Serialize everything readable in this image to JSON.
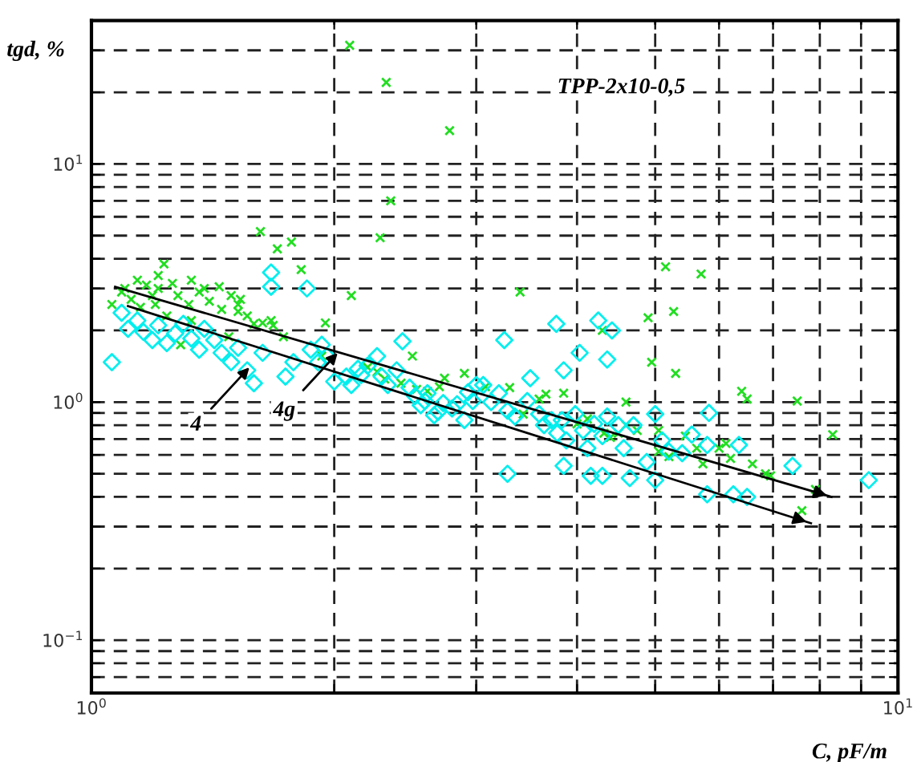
{
  "chart_data": {
    "type": "scatter",
    "xlabel": "C, pF/m",
    "ylabel": "tgd, %",
    "log": "xy",
    "grid": true,
    "xlim": [
      1,
      10
    ],
    "ylim": [
      0.06,
      40
    ],
    "xticks": [
      {
        "value": 1,
        "label": "10$^{0}$"
      },
      {
        "value": 2,
        "label": null
      },
      {
        "value": 3,
        "label": null
      },
      {
        "value": 4,
        "label": null
      },
      {
        "value": 5,
        "label": null
      },
      {
        "value": 6,
        "label": null
      },
      {
        "value": 7,
        "label": null
      },
      {
        "value": 8,
        "label": null
      },
      {
        "value": 9,
        "label": null
      },
      {
        "value": 10,
        "label": "10$^{1}$"
      }
    ],
    "yticks": [
      {
        "value": 0.07,
        "label": null
      },
      {
        "value": 0.08,
        "label": null
      },
      {
        "value": 0.09,
        "label": null
      },
      {
        "value": 0.1,
        "label": "10$^{−1}$"
      },
      {
        "value": 0.2,
        "label": null
      },
      {
        "value": 0.3,
        "label": null
      },
      {
        "value": 0.4,
        "label": null
      },
      {
        "value": 0.5,
        "label": null
      },
      {
        "value": 0.6,
        "label": null
      },
      {
        "value": 0.7,
        "label": null
      },
      {
        "value": 0.8,
        "label": null
      },
      {
        "value": 0.9,
        "label": null
      },
      {
        "value": 1,
        "label": "10$^{0}$"
      },
      {
        "value": 2,
        "label": null
      },
      {
        "value": 3,
        "label": null
      },
      {
        "value": 4,
        "label": null
      },
      {
        "value": 5,
        "label": null
      },
      {
        "value": 6,
        "label": null
      },
      {
        "value": 7,
        "label": null
      },
      {
        "value": 8,
        "label": null
      },
      {
        "value": 9,
        "label": null
      },
      {
        "value": 10,
        "label": "10$^{1}$"
      },
      {
        "value": 20,
        "label": null
      },
      {
        "value": 30,
        "label": null
      }
    ],
    "annotations": [
      "TPP-2x10-0,5",
      {
        "text": "4",
        "x": 1.57,
        "y": 1.4
      },
      {
        "text": "4g",
        "x": 2.02,
        "y": 1.61
      }
    ],
    "series": [
      {
        "marker": "cross",
        "color": "#22dd22",
        "x": [
          2.09,
          2.32,
          2.78,
          2.35,
          2.28,
          1.62,
          1.7,
          1.77,
          1.82,
          2.1,
          1.23,
          1.21,
          3.4,
          5.15,
          5.7,
          5.27,
          4.3,
          4.9,
          4.95,
          5.3,
          4.6,
          6.4,
          6.5,
          7.5,
          8.3,
          7.9,
          7.6,
          1.06,
          1.09,
          1.1,
          1.12,
          1.14,
          1.15,
          1.17,
          1.19,
          1.2,
          1.21,
          1.24,
          1.26,
          1.28,
          1.32,
          1.33,
          1.36,
          1.38,
          1.4,
          1.44,
          1.45,
          1.49,
          1.52,
          1.53,
          1.56,
          1.59,
          1.63,
          1.67,
          1.68,
          1.73,
          1.48,
          1.29,
          1.95,
          1.93,
          1.52,
          1.33,
          2.2,
          2.26,
          2.31,
          2.42,
          2.5,
          2.53,
          2.61,
          2.7,
          2.74,
          2.9,
          3.08,
          3.3,
          3.43,
          3.59,
          3.66,
          3.85,
          4.0,
          4.12,
          4.32,
          4.4,
          4.5,
          4.6,
          4.75,
          5.05,
          5.45,
          5.63,
          5.73,
          6.12,
          6.2,
          6.6,
          6.85,
          6.95,
          6.0,
          5.2,
          5.05
        ],
        "values": [
          31.5,
          22,
          13.8,
          7.0,
          4.9,
          5.2,
          4.4,
          4.7,
          3.6,
          2.8,
          3.8,
          3.4,
          2.9,
          3.7,
          3.45,
          2.4,
          2.0,
          2.26,
          1.47,
          1.32,
          1.0,
          1.11,
          1.03,
          1.01,
          0.73,
          0.43,
          0.35,
          2.57,
          2.9,
          3.0,
          2.7,
          3.25,
          2.5,
          3.1,
          2.8,
          2.57,
          3.0,
          2.3,
          3.15,
          2.8,
          2.57,
          3.25,
          2.9,
          3.0,
          2.65,
          3.05,
          2.45,
          2.8,
          2.57,
          2.7,
          2.3,
          2.13,
          2.15,
          2.2,
          2.1,
          1.88,
          1.88,
          1.74,
          2.15,
          1.56,
          2.4,
          2.2,
          1.4,
          1.34,
          1.25,
          1.2,
          1.56,
          1.13,
          1.11,
          1.16,
          1.26,
          1.32,
          1.16,
          1.15,
          0.89,
          1.03,
          1.08,
          1.09,
          0.81,
          0.85,
          0.74,
          0.71,
          0.74,
          0.8,
          0.76,
          0.76,
          0.72,
          0.64,
          0.55,
          0.67,
          0.58,
          0.55,
          0.5,
          0.49,
          0.64,
          0.59,
          0.62
        ]
      },
      {
        "marker": "diamond",
        "color": "#00eeee",
        "x": [
          1.06,
          1.09,
          1.11,
          1.14,
          1.16,
          1.19,
          1.21,
          1.24,
          1.27,
          1.3,
          1.33,
          1.36,
          1.38,
          1.42,
          1.45,
          1.49,
          1.52,
          1.56,
          1.59,
          1.63,
          1.67,
          1.67,
          1.85,
          1.78,
          1.74,
          1.87,
          1.91,
          1.93,
          1.96,
          2.0,
          2.07,
          2.1,
          2.14,
          2.16,
          2.2,
          2.26,
          2.29,
          2.33,
          2.39,
          2.43,
          2.48,
          2.52,
          2.56,
          2.59,
          2.61,
          2.66,
          2.69,
          2.73,
          2.8,
          2.84,
          2.9,
          2.93,
          2.97,
          3.0,
          3.25,
          3.77,
          4.25,
          4.42,
          4.36,
          4.03,
          3.85,
          3.5,
          3.06,
          3.13,
          3.2,
          3.28,
          3.35,
          3.28,
          3.47,
          3.59,
          3.64,
          3.72,
          3.78,
          3.83,
          3.88,
          3.98,
          4.07,
          4.12,
          4.2,
          4.3,
          4.36,
          4.5,
          4.57,
          4.7,
          4.88,
          5.0,
          5.1,
          5.2,
          4.16,
          3.85,
          4.3,
          4.65,
          5.0,
          5.4,
          5.55,
          5.8,
          5.8,
          6.25,
          6.35,
          6.5,
          7.4,
          9.2,
          5.83
        ],
        "values": [
          1.47,
          2.37,
          2.03,
          2.2,
          1.97,
          1.82,
          2.1,
          1.77,
          1.94,
          2.13,
          1.85,
          1.66,
          2.03,
          1.82,
          1.61,
          1.47,
          1.69,
          1.36,
          1.2,
          1.61,
          3.5,
          3.05,
          3.0,
          1.47,
          1.28,
          1.66,
          1.47,
          1.74,
          1.56,
          1.22,
          1.28,
          1.18,
          1.38,
          1.3,
          1.42,
          1.56,
          1.28,
          1.18,
          1.36,
          1.8,
          1.15,
          1.06,
          0.97,
          1.01,
          1.09,
          0.88,
          0.91,
          0.99,
          0.94,
          0.98,
          0.84,
          1.1,
          1.01,
          1.18,
          1.82,
          2.13,
          2.2,
          2.0,
          1.51,
          1.61,
          1.36,
          1.26,
          1.18,
          1.0,
          1.09,
          0.92,
          0.87,
          0.5,
          1.01,
          0.89,
          0.8,
          0.84,
          0.74,
          0.84,
          0.69,
          0.89,
          0.76,
          0.64,
          0.81,
          0.72,
          0.87,
          0.8,
          0.64,
          0.8,
          0.56,
          0.89,
          0.69,
          0.62,
          0.49,
          0.54,
          0.49,
          0.48,
          0.47,
          0.61,
          0.73,
          0.41,
          0.66,
          0.41,
          0.66,
          0.4,
          0.54,
          0.47,
          0.9
        ]
      },
      {
        "type": "line",
        "marker": "none",
        "color": "#000000",
        "x": [
          1.07,
          8.27
        ],
        "values": [
          3.05,
          0.4
        ]
      },
      {
        "type": "line",
        "marker": "none",
        "color": "#000000",
        "x": [
          1.11,
          7.8
        ],
        "values": [
          2.53,
          0.31
        ]
      }
    ]
  }
}
